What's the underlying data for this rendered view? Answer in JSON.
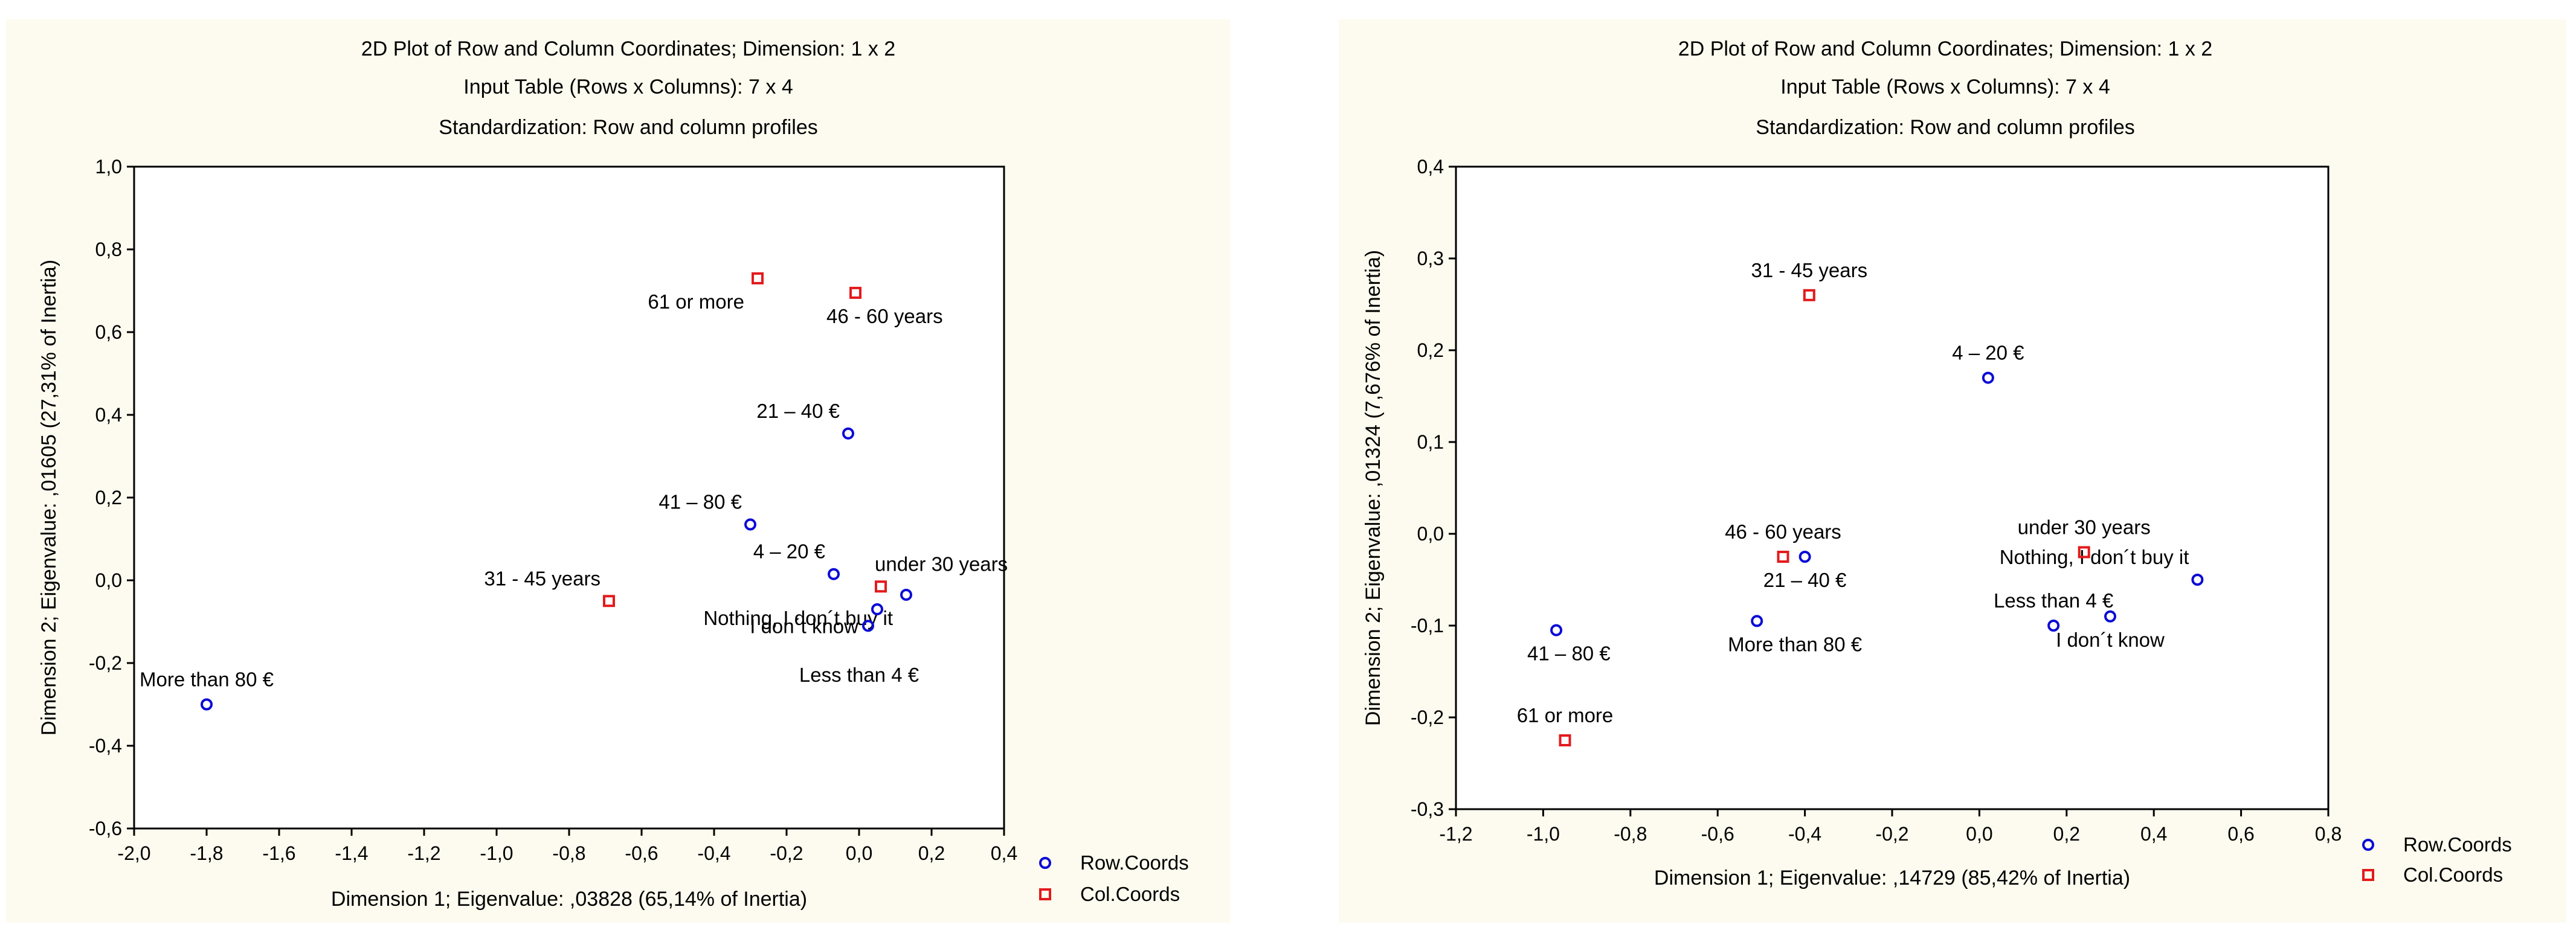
{
  "colors": {
    "panel_bg": "#fdfbef",
    "row_marker": "#0b0bd6",
    "col_marker": "#e31a1c",
    "axis": "#000000"
  },
  "chart_data": [
    {
      "type": "scatter",
      "title_lines": [
        "2D Plot of Row and Column Coordinates; Dimension:  1 x 2",
        "Input Table (Rows x Columns): 7 x 4",
        "Standardization: Row and column profiles"
      ],
      "xlabel": "Dimension 1; Eigenvalue: ,03828 (65,14% of Inertia)",
      "ylabel": "Dimension 2; Eigenvalue: ,01605 (27,31% of Inertia)",
      "xlim": [
        -2.0,
        0.4
      ],
      "ylim": [
        -0.6,
        1.0
      ],
      "xticks": [
        -2.0,
        -1.8,
        -1.6,
        -1.4,
        -1.2,
        -1.0,
        -0.8,
        -0.6,
        -0.4,
        -0.2,
        0.0,
        0.2,
        0.4
      ],
      "xtick_labels": [
        "-2,0",
        "-1,8",
        "-1,6",
        "-1,4",
        "-1,2",
        "-1,0",
        "-0,8",
        "-0,6",
        "-0,4",
        "-0,2",
        "0,0",
        "0,2",
        "0,4"
      ],
      "yticks": [
        -0.6,
        -0.4,
        -0.2,
        0.0,
        0.2,
        0.4,
        0.6,
        0.8,
        1.0
      ],
      "ytick_labels": [
        "-0,6",
        "-0,4",
        "-0,2",
        "0,0",
        "0,2",
        "0,4",
        "0,6",
        "0,8",
        "1,0"
      ],
      "legend": [
        {
          "name": "Row.Coords",
          "marker": "circle"
        },
        {
          "name": "Col.Coords",
          "marker": "square"
        }
      ],
      "series": [
        {
          "name": "Row.Coords",
          "marker": "circle",
          "points": [
            {
              "label": "More than 80 €",
              "x": -1.8,
              "y": -0.3,
              "pos": "above"
            },
            {
              "label": "41 – 80 €",
              "x": -0.3,
              "y": 0.135,
              "pos": "above-left"
            },
            {
              "label": "21 – 40 €",
              "x": -0.03,
              "y": 0.355,
              "pos": "above-left"
            },
            {
              "label": "4 – 20 €",
              "x": -0.07,
              "y": 0.015,
              "pos": "above-left"
            },
            {
              "label": "Nothing, I don´t buy it",
              "x": 0.13,
              "y": -0.035,
              "pos": "below-left"
            },
            {
              "label": "I don´t know",
              "x": 0.025,
              "y": -0.11,
              "pos": "left"
            },
            {
              "label": "Less than 4 €",
              "x": 0.05,
              "y": -0.07,
              "pos": "below-far"
            }
          ]
        },
        {
          "name": "Col.Coords",
          "marker": "square",
          "points": [
            {
              "label": "61 or more",
              "x": -0.28,
              "y": 0.73,
              "pos": "below-left"
            },
            {
              "label": "46 - 60 years",
              "x": -0.01,
              "y": 0.695,
              "pos": "below-right"
            },
            {
              "label": "31 - 45 years",
              "x": -0.69,
              "y": -0.05,
              "pos": "above-left"
            },
            {
              "label": "under 30 years",
              "x": 0.06,
              "y": -0.015,
              "pos": "above-right"
            }
          ]
        }
      ]
    },
    {
      "type": "scatter",
      "title_lines": [
        "2D Plot of Row and Column Coordinates; Dimension:  1 x 2",
        "Input Table (Rows x Columns): 7 x 4",
        "Standardization: Row and column profiles"
      ],
      "xlabel": "Dimension 1; Eigenvalue: ,14729 (85,42% of Inertia)",
      "ylabel": "Dimension 2; Eigenvalue: ,01324 (7,676% of Inertia)",
      "xlim": [
        -1.2,
        0.8
      ],
      "ylim": [
        -0.3,
        0.4
      ],
      "xticks": [
        -1.2,
        -1.0,
        -0.8,
        -0.6,
        -0.4,
        -0.2,
        0.0,
        0.2,
        0.4,
        0.6,
        0.8
      ],
      "xtick_labels": [
        "-1,2",
        "-1,0",
        "-0,8",
        "-0,6",
        "-0,4",
        "-0,2",
        "0,0",
        "0,2",
        "0,4",
        "0,6",
        "0,8"
      ],
      "yticks": [
        -0.3,
        -0.2,
        -0.1,
        0.0,
        0.1,
        0.2,
        0.3,
        0.4
      ],
      "ytick_labels": [
        "-0,3",
        "-0,2",
        "-0,1",
        "0,0",
        "0,1",
        "0,2",
        "0,3",
        "0,4"
      ],
      "legend": [
        {
          "name": "Row.Coords",
          "marker": "circle"
        },
        {
          "name": "Col.Coords",
          "marker": "square"
        }
      ],
      "series": [
        {
          "name": "Row.Coords",
          "marker": "circle",
          "points": [
            {
              "label": "4 – 20 €",
              "x": 0.02,
              "y": 0.17,
              "pos": "above"
            },
            {
              "label": "21 – 40 €",
              "x": -0.4,
              "y": -0.025,
              "pos": "below"
            },
            {
              "label": "More than 80 €",
              "x": -0.51,
              "y": -0.095,
              "pos": "below-right"
            },
            {
              "label": "41 – 80 €",
              "x": -0.97,
              "y": -0.105,
              "pos": "below-right"
            },
            {
              "label": "Less than 4 €",
              "x": 0.17,
              "y": -0.1,
              "pos": "above-center"
            },
            {
              "label": "I don´t know",
              "x": 0.3,
              "y": -0.09,
              "pos": "below"
            },
            {
              "label": "Nothing, I don´t buy it",
              "x": 0.5,
              "y": -0.05,
              "pos": "above-left"
            }
          ]
        },
        {
          "name": "Col.Coords",
          "marker": "square",
          "points": [
            {
              "label": "31 - 45 years",
              "x": -0.39,
              "y": 0.26,
              "pos": "above"
            },
            {
              "label": "46 - 60 years",
              "x": -0.45,
              "y": -0.025,
              "pos": "above"
            },
            {
              "label": "under 30 years",
              "x": 0.24,
              "y": -0.02,
              "pos": "above"
            },
            {
              "label": "61 or more",
              "x": -0.95,
              "y": -0.225,
              "pos": "above"
            }
          ]
        }
      ]
    }
  ]
}
